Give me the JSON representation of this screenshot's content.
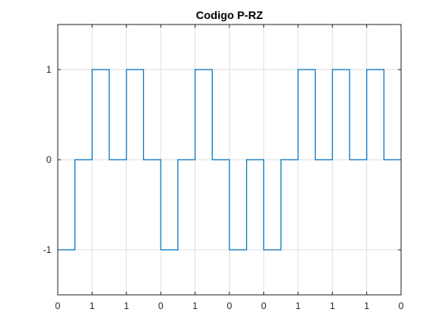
{
  "chart_data": {
    "type": "line",
    "title": "Codigo P-RZ",
    "xlabel": "",
    "ylabel": "",
    "xlim": [
      0,
      10
    ],
    "ylim": [
      -1.5,
      1.5
    ],
    "grid": true,
    "line_color": "#0072bd",
    "x_ticks": [
      0,
      1,
      2,
      3,
      4,
      5,
      6,
      7,
      8,
      9,
      10
    ],
    "x_tick_labels": [
      "0",
      "1",
      "1",
      "0",
      "1",
      "0",
      "0",
      "1",
      "1",
      "1",
      "0"
    ],
    "y_ticks": [
      -1,
      0,
      1
    ],
    "y_tick_labels": [
      "-1",
      "0",
      "1"
    ],
    "series": [
      {
        "x": [
          0,
          0.5,
          0.5,
          1,
          1,
          1.5,
          1.5,
          2,
          2,
          2.5,
          2.5,
          3,
          3,
          3.5,
          3.5,
          4,
          4,
          4.5,
          4.5,
          5,
          5,
          5.5,
          5.5,
          6,
          6,
          6.5,
          6.5,
          7,
          7,
          7.5,
          7.5,
          8,
          8,
          8.5,
          8.5,
          9,
          9,
          9.5,
          9.5,
          10
        ],
        "y": [
          -1,
          -1,
          0,
          0,
          1,
          1,
          0,
          0,
          1,
          1,
          0,
          0,
          -1,
          -1,
          0,
          0,
          1,
          1,
          0,
          0,
          -1,
          -1,
          0,
          0,
          -1,
          -1,
          0,
          0,
          1,
          1,
          0,
          0,
          1,
          1,
          0,
          0,
          1,
          1,
          0,
          0
        ]
      }
    ]
  }
}
